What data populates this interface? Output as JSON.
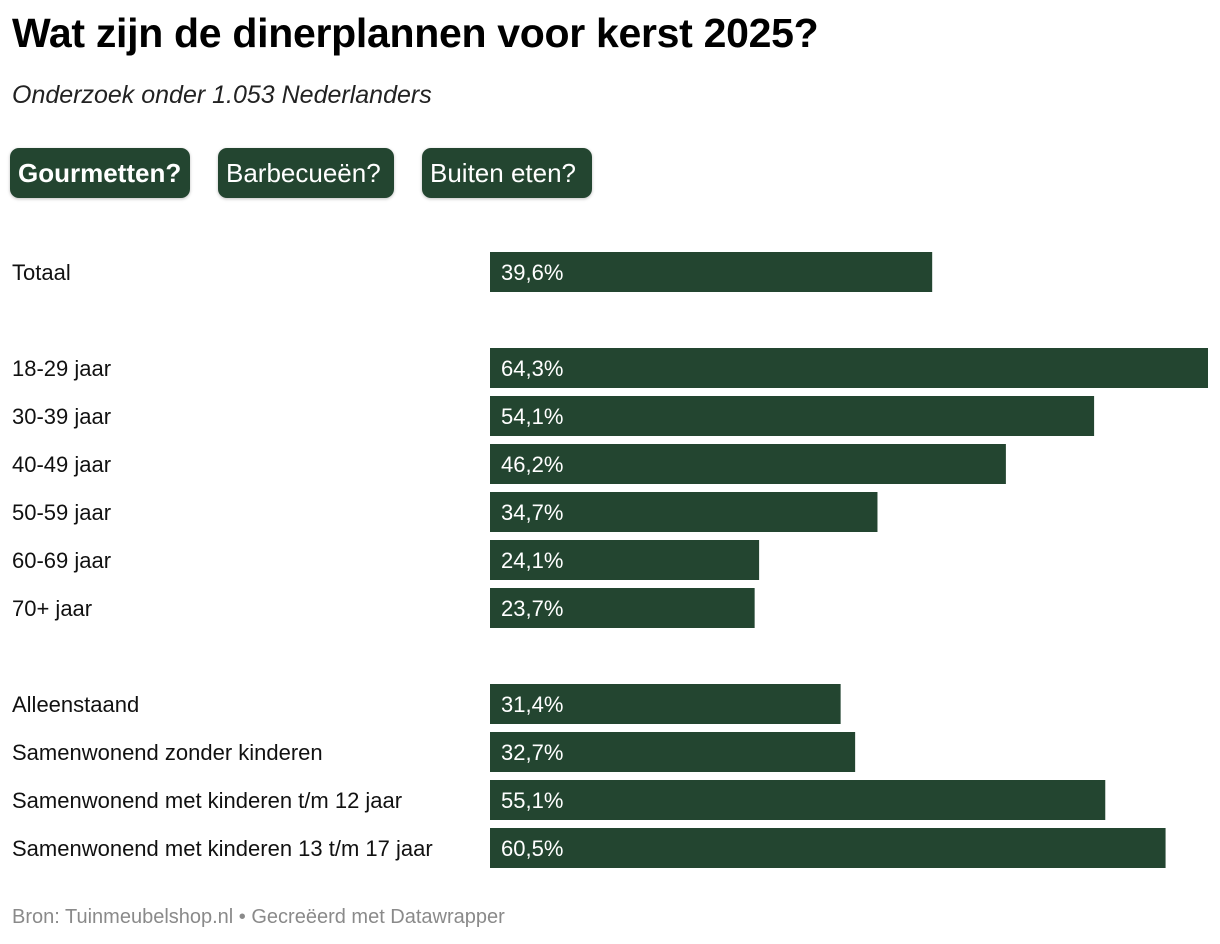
{
  "title": "Wat zijn de dinerplannen voor kerst 2025?",
  "subtitle": "Onderzoek onder 1.053 Nederlanders",
  "tabs": [
    {
      "label": "Gourmetten?",
      "active": true
    },
    {
      "label": "Barbecueën?",
      "active": false
    },
    {
      "label": "Buiten eten?",
      "active": false
    }
  ],
  "colors": {
    "bar": "#234530",
    "text": "#111111",
    "footer": "#8a8a8a"
  },
  "chart_data": {
    "type": "bar",
    "orientation": "horizontal",
    "title": "Gourmetten?",
    "xlim": [
      0,
      64.3
    ],
    "unit": "%",
    "groups": [
      {
        "categories": [
          "Totaal"
        ],
        "values": [
          39.6
        ]
      },
      {
        "categories": [
          "18-29 jaar",
          "30-39 jaar",
          "40-49 jaar",
          "50-59 jaar",
          "60-69 jaar",
          "70+ jaar"
        ],
        "values": [
          64.3,
          54.1,
          46.2,
          34.7,
          24.1,
          23.7
        ]
      },
      {
        "categories": [
          "Alleenstaand",
          "Samenwonend zonder kinderen",
          "Samenwonend met kinderen t/m 12 jaar",
          "Samenwonend met kinderen 13 t/m 17 jaar"
        ],
        "values": [
          31.4,
          32.7,
          55.1,
          60.5
        ]
      }
    ],
    "value_labels": [
      "39,6%",
      "64,3%",
      "54,1%",
      "46,2%",
      "34,7%",
      "24,1%",
      "23,7%",
      "31,4%",
      "32,7%",
      "55,1%",
      "60,5%"
    ]
  },
  "footer": "Bron: Tuinmeubelshop.nl • Gecreëerd met Datawrapper"
}
